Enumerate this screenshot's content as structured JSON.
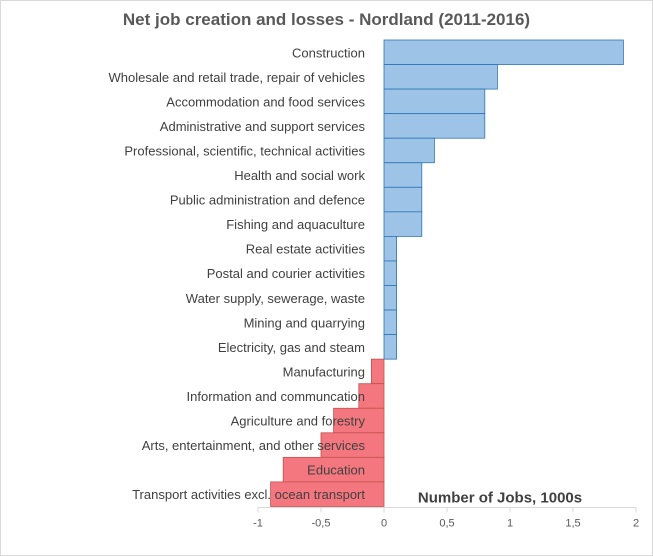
{
  "chart_data": {
    "type": "bar",
    "orientation": "horizontal",
    "title": "Net job creation and losses - Nordland (2011-2016)",
    "xlabel": "Number of Jobs, 1000s",
    "ylabel": "",
    "xlim": [
      -1,
      2
    ],
    "x_ticks": [
      "-1",
      "-0,5",
      "0",
      "0,5",
      "1",
      "1,5",
      "2"
    ],
    "grid": false,
    "legend": "none",
    "colors": {
      "positive": "#9dc3e6",
      "positive_border": "#2e75b6",
      "negative": "#f4777f",
      "negative_border": "#c0504d"
    },
    "categories": [
      "Construction",
      "Wholesale and retail trade, repair of vehicles",
      "Accommodation and food services",
      "Administrative and support services",
      "Professional, scientific, technical activities",
      "Health and social work",
      "Public administration and defence",
      "Fishing and aquaculture",
      "Real estate activities",
      "Postal and courier activities",
      "Water supply, sewerage, waste",
      "Mining and quarrying",
      "Electricity, gas and steam",
      "Manufacturing",
      "Information and communcation",
      "Agriculture and forestry",
      "Arts, entertainment, and other services",
      "Education",
      "Transport activities excl. ocean transport"
    ],
    "values": [
      1.9,
      0.9,
      0.8,
      0.8,
      0.4,
      0.3,
      0.3,
      0.3,
      0.1,
      0.1,
      0.1,
      0.1,
      0.1,
      -0.1,
      -0.2,
      -0.4,
      -0.5,
      -0.8,
      -0.9
    ]
  }
}
